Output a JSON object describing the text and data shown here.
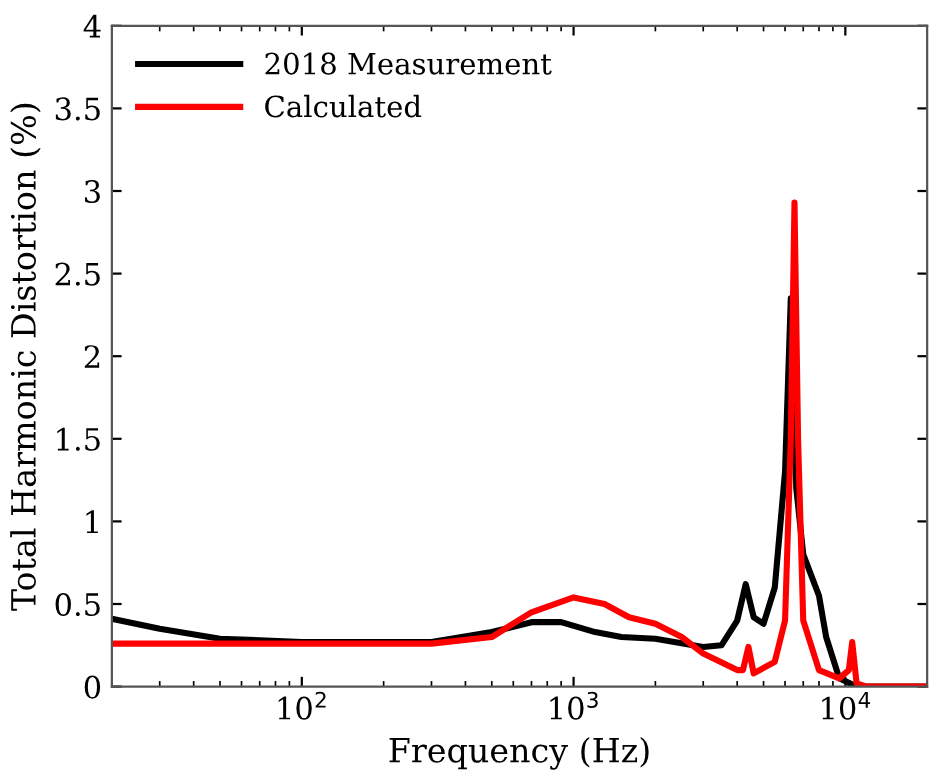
{
  "chart_data": {
    "type": "line",
    "xlabel": "Frequency (Hz)",
    "ylabel": "Total Harmonic Distortion (%)",
    "log": "x",
    "xlim": [
      20,
      20000
    ],
    "ylim": [
      0,
      4
    ],
    "xticks": [
      {
        "value": 100,
        "label": "10$^{2}$"
      },
      {
        "value": 1000,
        "label": "10$^{3}$"
      },
      {
        "value": 10000,
        "label": "10$^{4}$"
      }
    ],
    "yticks": [
      0,
      0.5,
      1,
      1.5,
      2,
      2.5,
      3,
      3.5,
      4
    ],
    "legend": "top left",
    "grid": false,
    "line_style": "solid",
    "marker": "none",
    "series": [
      {
        "name": "2018 Measurement",
        "color": "#000000",
        "x": [
          20,
          30,
          50,
          100,
          300,
          500,
          700,
          900,
          1200,
          1500,
          2000,
          3000,
          3500,
          4000,
          4300,
          4600,
          5000,
          5500,
          6000,
          6300,
          6600,
          7000,
          8000,
          8500,
          9500,
          11000,
          20000
        ],
        "values": [
          0.41,
          0.35,
          0.29,
          0.27,
          0.27,
          0.33,
          0.39,
          0.39,
          0.33,
          0.3,
          0.29,
          0.24,
          0.25,
          0.4,
          0.62,
          0.42,
          0.38,
          0.6,
          1.3,
          2.35,
          1.2,
          0.8,
          0.55,
          0.3,
          0.05,
          0,
          0
        ]
      },
      {
        "name": "Calculated",
        "color": "#ff0000",
        "x": [
          20,
          300,
          500,
          700,
          1000,
          1300,
          1600,
          2000,
          2500,
          3000,
          4000,
          4200,
          4400,
          4600,
          5500,
          6000,
          6300,
          6500,
          6700,
          7000,
          8000,
          9500,
          10300,
          10600,
          11000,
          12000,
          20000
        ],
        "values": [
          0.26,
          0.26,
          0.3,
          0.45,
          0.54,
          0.5,
          0.42,
          0.38,
          0.3,
          0.2,
          0.1,
          0.1,
          0.24,
          0.08,
          0.15,
          0.4,
          1.5,
          2.93,
          1.5,
          0.4,
          0.1,
          0.05,
          0.1,
          0.27,
          0.02,
          0,
          0
        ]
      }
    ]
  }
}
